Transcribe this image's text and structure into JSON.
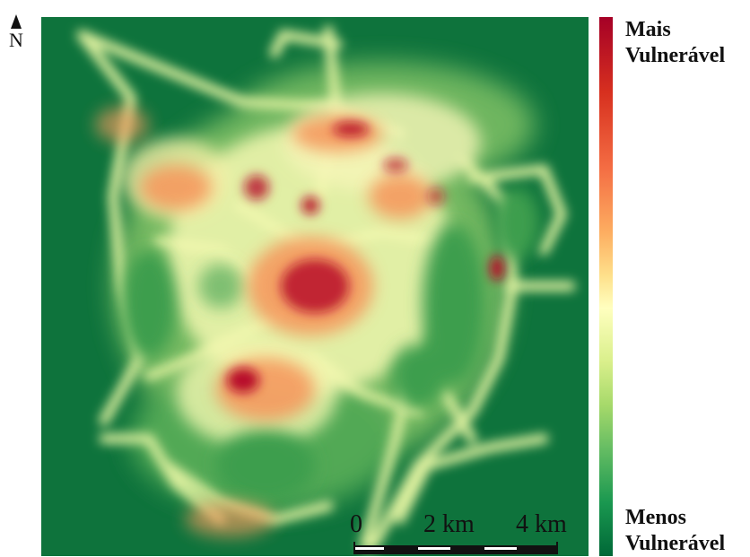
{
  "north": {
    "label": "N"
  },
  "legend": {
    "top_label": "Mais\nVulnerável",
    "top_line1": "Mais",
    "top_line2": "Vulnerável",
    "bottom_line1": "Menos",
    "bottom_line2": "Vulnerável",
    "colors": [
      "#a50026",
      "#d7301f",
      "#f46d43",
      "#fdae61",
      "#fee08b",
      "#ffffbf",
      "#d9ef8b",
      "#a6d96a",
      "#66bd63",
      "#1a9850",
      "#006837"
    ]
  },
  "scale": {
    "labels": [
      "0",
      "2 km",
      "4 km"
    ]
  },
  "map": {
    "background_color": "#0e733c",
    "hotspot_color": "#b8102a"
  }
}
